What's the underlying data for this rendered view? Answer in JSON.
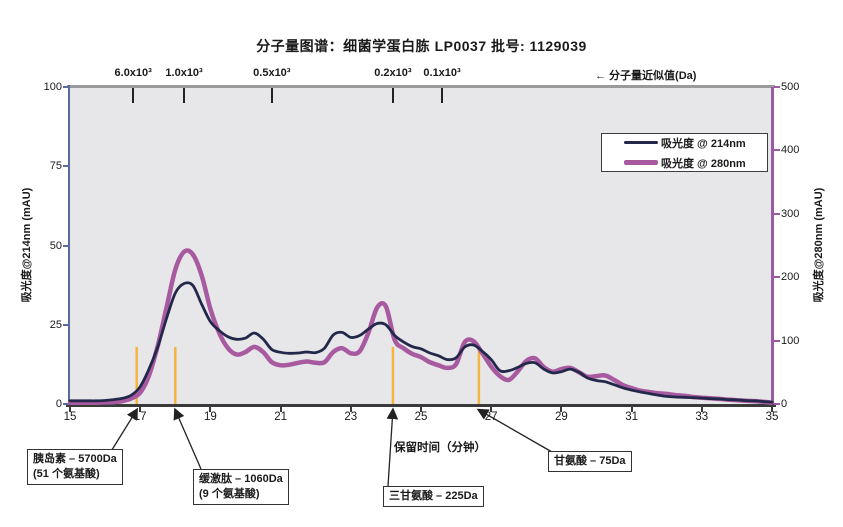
{
  "title": "分子量图谱：细菌学蛋白胨 LP0037  批号: 1129039",
  "top_axis": {
    "label": "← 分子量近似值(Da)",
    "markers": [
      {
        "label": "6.0x10³",
        "time_min": 16.8
      },
      {
        "label": "1.0x10³",
        "time_min": 18.25
      },
      {
        "label": "0.5x10³",
        "time_min": 20.75
      },
      {
        "label": "0.2x10³",
        "time_min": 24.2
      },
      {
        "label": "0.1x10³",
        "time_min": 25.6
      }
    ]
  },
  "legend": {
    "items": [
      {
        "label": "吸光度 @ 214nm",
        "color_key": "abs214",
        "thickness": 3
      },
      {
        "label": "吸光度 @ 280nm",
        "color_key": "abs280",
        "thickness": 5
      }
    ]
  },
  "axes": {
    "x": {
      "label": "保留时间（分钟）",
      "min": 15,
      "max": 35,
      "ticks": [
        15,
        17,
        19,
        21,
        23,
        25,
        27,
        29,
        31,
        33,
        35
      ]
    },
    "y_left": {
      "label": "吸光度@214nm (mAU)",
      "min": 0,
      "max": 100,
      "ticks": [
        0,
        25,
        50,
        75,
        100
      ]
    },
    "y_right": {
      "label": "吸光度@280nm (mAU)",
      "min": 0,
      "max": 500,
      "ticks": [
        0,
        100,
        200,
        300,
        400,
        500
      ]
    }
  },
  "colors": {
    "abs214": "#23284a",
    "abs280": "#a85aa0",
    "marker_line": "#f4b440",
    "plot_bg": "#e7e6e8",
    "left_axis": "#5b6b9e",
    "right_axis": "#9b5ba0",
    "top_border": "#9a999b",
    "bottom_axis": "#3a3a3a"
  },
  "annotations": [
    {
      "lines": [
        "胰岛素 – 5700Da",
        "(51 个氨基酸)"
      ],
      "time_min": 16.9
    },
    {
      "lines": [
        "缓激肽 – 1060Da",
        "(9 个氨基酸)"
      ],
      "time_min": 18.0
    },
    {
      "lines": [
        "三甘氨酸 – 225Da"
      ],
      "time_min": 24.2
    },
    {
      "lines": [
        "甘氨酸  – 75Da"
      ],
      "time_min": 26.65
    }
  ],
  "chart_data": {
    "type": "line",
    "title": "分子量图谱：细菌学蛋白胨 LP0037  批号: 1129039",
    "xlabel": "保留时间（分钟）",
    "ylabel_left": "吸光度@214nm (mAU)",
    "ylabel_right": "吸光度@280nm (mAU)",
    "xlim": [
      15,
      35
    ],
    "ylim_left": [
      0,
      100
    ],
    "ylim_right": [
      0,
      500
    ],
    "grid": false,
    "legend_position": "upper right",
    "x_start": 15,
    "x_step": 0.25,
    "series": [
      {
        "name": "吸光度 @ 214nm",
        "axis": "left",
        "units": "mAU",
        "color_key": "abs214",
        "values": [
          1.0,
          1.0,
          1.0,
          1.0,
          1.1,
          1.4,
          1.8,
          2.8,
          5.5,
          11,
          18,
          27,
          35,
          38,
          37.4,
          31.5,
          26,
          23.2,
          21.2,
          20.4,
          20.8,
          22.4,
          20.5,
          17.2,
          16.3,
          16.0,
          16.1,
          16.4,
          16.2,
          17.6,
          21.8,
          22.6,
          21.0,
          21.6,
          23.6,
          25.4,
          25.0,
          21.6,
          19.6,
          18.1,
          17.4,
          16.1,
          15.2,
          14.0,
          14.6,
          18.0,
          18.6,
          16.6,
          14.0,
          10.5,
          10.5,
          11.5,
          12.8,
          13.0,
          11.0,
          9.8,
          10.2,
          11.0,
          10.0,
          8.2,
          7.4,
          7.0,
          6.1,
          5.1,
          4.4,
          3.8,
          3.3,
          2.8,
          2.4,
          2.2,
          2.1,
          2.0,
          1.9,
          1.7,
          1.6,
          1.4,
          1.3,
          1.1,
          1.0,
          0.8,
          0.6
        ]
      },
      {
        "name": "吸光度 @ 280nm",
        "axis": "right",
        "units": "mAU",
        "color_key": "abs280",
        "values": [
          2,
          2,
          2,
          2,
          2.5,
          3,
          4.5,
          9,
          18,
          45,
          92,
          152,
          212,
          240,
          236,
          203,
          150,
          112,
          88,
          78,
          82,
          90,
          82,
          66,
          61,
          62,
          65,
          67,
          65,
          66,
          82,
          88,
          80,
          83,
          112,
          152,
          154,
          101,
          88,
          79,
          74,
          66,
          61,
          57,
          63,
          98,
          99,
          80,
          59,
          44,
          38,
          51,
          68,
          72,
          58,
          51,
          55,
          57,
          50,
          43,
          44,
          45,
          38,
          30,
          25,
          21,
          19,
          17,
          16,
          14,
          13,
          11,
          10,
          9,
          8,
          7,
          6,
          5,
          4.5,
          3.5,
          2
        ]
      }
    ],
    "peak_marker_lines": {
      "height_mAU_left": 18,
      "times_min": [
        16.9,
        18.0,
        24.2,
        26.65
      ]
    }
  }
}
